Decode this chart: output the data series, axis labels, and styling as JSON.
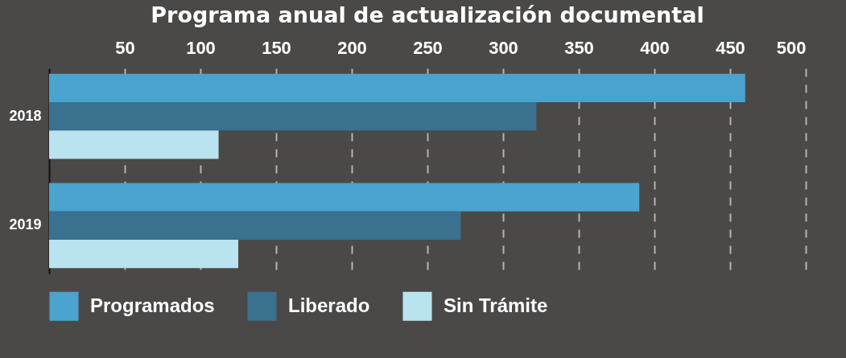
{
  "chart_data": {
    "type": "bar",
    "orientation": "horizontal",
    "title": "Programa anual de actualización documental",
    "categories": [
      "2018",
      "2019"
    ],
    "series": [
      {
        "name": "Programados",
        "color": "#4ba3cf",
        "values": [
          460,
          390
        ]
      },
      {
        "name": "Liberado",
        "color": "#3a718f",
        "values": [
          322,
          272
        ]
      },
      {
        "name": "Sin Trámite",
        "color": "#b9e3ee",
        "values": [
          112,
          125
        ]
      }
    ],
    "xlim": [
      0,
      500
    ],
    "xticks": [
      50,
      100,
      150,
      200,
      250,
      300,
      350,
      400,
      450,
      500
    ],
    "grid": "x",
    "legend": "bottom left"
  }
}
